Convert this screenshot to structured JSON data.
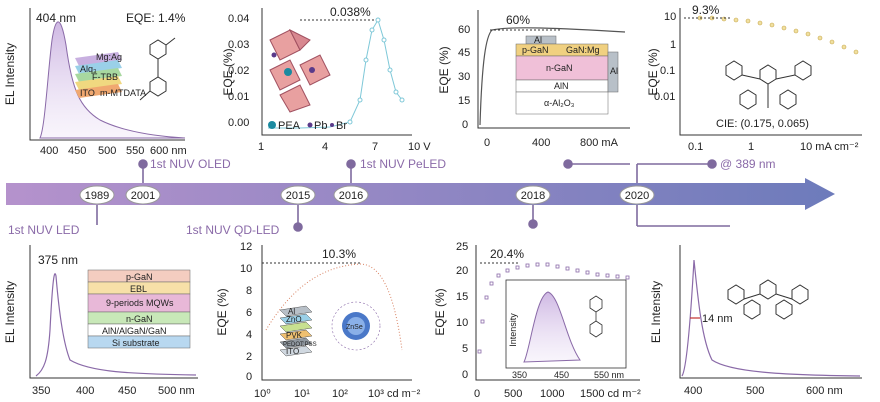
{
  "timeline": {
    "years": [
      "1989",
      "2001",
      "2015",
      "2016",
      "2018",
      "2020"
    ],
    "milestones": {
      "nuv_led": "1st NUV LED",
      "nuv_oled": "1st NUV OLED",
      "nuv_qdled": "1st NUV QD-LED",
      "nuv_peled": "1st NUV PeLED",
      "at389": "@ 389 nm"
    },
    "colors": {
      "arrow_start": "#b08ac8",
      "arrow_end": "#6a78b8",
      "accent": "#7f6a9e"
    }
  },
  "panels": {
    "oled": {
      "peak": "404 nm",
      "eqe": "EQE: 1.4%",
      "ylabel": "EL Intensity",
      "xticks": [
        "400",
        "450",
        "500",
        "550",
        "600 nm"
      ],
      "layers": [
        "Al",
        "Mg:Ag",
        "Alq₃",
        "F-TBB",
        "m-MTDATA",
        "ITO"
      ]
    },
    "peled": {
      "ylabel": "EQE (%)",
      "peak_label": "0.038%",
      "yticks": [
        "0.00",
        "0.01",
        "0.02",
        "0.03",
        "0.04"
      ],
      "xticks": [
        "1",
        "4",
        "7",
        "10 V"
      ],
      "legend": [
        "PEA",
        "Pb",
        "Br"
      ]
    },
    "ledtop": {
      "ylabel": "EQE (%)",
      "peak_label": "60%",
      "yticks": [
        "0",
        "15",
        "30",
        "45",
        "60"
      ],
      "xticks": [
        "0",
        "400",
        "800 mA"
      ],
      "layers": [
        "Al",
        "p-GaN",
        "GaN:Mg",
        "n-GaN",
        "AlN",
        "α-Al₂O₃",
        "Al"
      ]
    },
    "tadf": {
      "ylabel": "EQE (%)",
      "peak_label": "9.3%",
      "yticks": [
        "10",
        "1",
        "0.1",
        "0.01"
      ],
      "xticks": [
        "0.1",
        "1",
        "10 mA cm⁻²"
      ],
      "cie": "CIE: (0.175, 0.065)"
    },
    "led375": {
      "ylabel": "EL Intensity",
      "peak": "375 nm",
      "xticks": [
        "350",
        "400",
        "450",
        "500 nm"
      ],
      "layers": [
        "p-GaN",
        "EBL",
        "9-periods MQWs",
        "n-GaN",
        "AlN/AlGaN/GaN",
        "Si substrate"
      ]
    },
    "qdled": {
      "ylabel": "EQE (%)",
      "peak_label": "10.3%",
      "yticks": [
        "0",
        "2",
        "4",
        "6",
        "8",
        "10",
        "12"
      ],
      "xticks": [
        "10⁰",
        "10¹",
        "10²",
        "10³ cd m⁻²"
      ],
      "layers": [
        "Al",
        "ZnO",
        "QDs",
        "PVK",
        "PEDOT:PSS",
        "ITO"
      ],
      "qd_label": "ZnSe"
    },
    "oled2018": {
      "ylabel": "EQE (%)",
      "peak_label": "20.4%",
      "yticks": [
        "0",
        "5",
        "10",
        "15",
        "20",
        "25"
      ],
      "xticks": [
        "0",
        "500",
        "1000",
        "1500 cd m⁻²"
      ],
      "inset_ylabel": "Intensity",
      "inset_xticks": [
        "350",
        "450",
        "550 nm"
      ]
    },
    "mr2020": {
      "ylabel": "EL Intensity",
      "fwhm": "14 nm",
      "xticks": [
        "400",
        "500",
        "600 nm"
      ]
    }
  }
}
